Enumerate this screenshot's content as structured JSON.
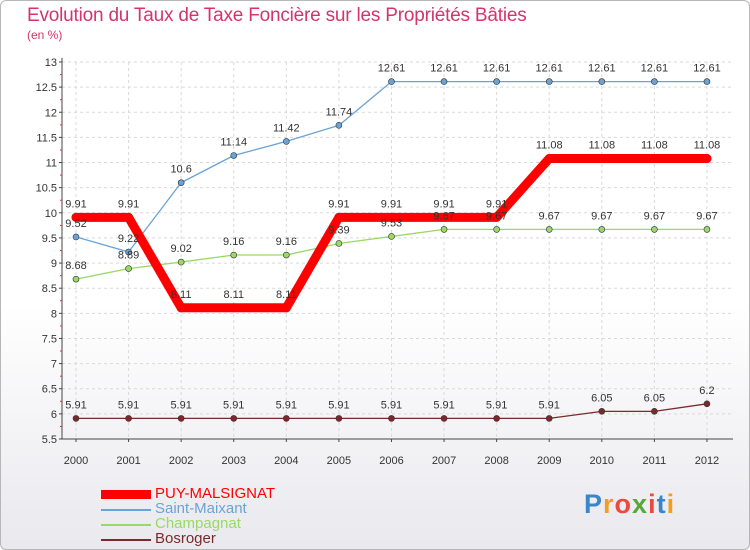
{
  "title": "Evolution du Taux de Taxe Foncière sur les Propriétés Bâties",
  "unit": "(en %)",
  "logo": [
    "P",
    "r",
    "o",
    "x",
    "i",
    "t",
    "i"
  ],
  "logo_colors": [
    "#3a86c8",
    "#f0a01e",
    "#e94b3c",
    "#57a838",
    "#e94b3c",
    "#3a86c8",
    "#f0a01e"
  ],
  "chart_data": {
    "type": "line",
    "x": [
      "2000",
      "2001",
      "2002",
      "2003",
      "2004",
      "2005",
      "2006",
      "2007",
      "2008",
      "2009",
      "2010",
      "2011",
      "2012"
    ],
    "ylim": [
      5.5,
      13
    ],
    "yticks": [
      "5.5",
      "6",
      "6.5",
      "7",
      "7.5",
      "8",
      "8.5",
      "9",
      "9.5",
      "10",
      "10.5",
      "11",
      "11.5",
      "12",
      "12.5",
      "13"
    ],
    "series": [
      {
        "name": "PUY-MALSIGNAT",
        "color": "#ff0000",
        "width": 9,
        "values": [
          9.91,
          9.91,
          8.11,
          8.11,
          8.11,
          9.91,
          9.91,
          9.91,
          9.91,
          11.08,
          11.08,
          11.08,
          11.08
        ],
        "labels": [
          "9.91",
          "9.91",
          "8.11",
          "8.11",
          "8.11",
          "9.91",
          "9.91",
          "9.91",
          "9.91",
          "11.08",
          "11.08",
          "11.08",
          "11.08"
        ]
      },
      {
        "name": "Saint-Maixant",
        "color": "#6aa3d5",
        "width": 1.3,
        "values": [
          9.52,
          9.22,
          10.6,
          11.14,
          11.42,
          11.74,
          12.61,
          12.61,
          12.61,
          12.61,
          12.61,
          12.61,
          12.61
        ],
        "labels": [
          "9.52",
          "9.22",
          "10.6",
          "11.14",
          "11.42",
          "11.74",
          "12.61",
          "12.61",
          "12.61",
          "12.61",
          "12.61",
          "12.61",
          "12.61"
        ]
      },
      {
        "name": "Champagnat",
        "color": "#99d966",
        "width": 1.3,
        "values": [
          8.68,
          8.89,
          9.02,
          9.16,
          9.16,
          9.39,
          9.53,
          9.67,
          9.67,
          9.67,
          9.67,
          9.67,
          9.67
        ],
        "labels": [
          "8.68",
          "8.89",
          "9.02",
          "9.16",
          "9.16",
          "9.39",
          "9.53",
          "9.67",
          "9.67",
          "9.67",
          "9.67",
          "9.67",
          "9.67"
        ]
      },
      {
        "name": "Bosroger",
        "color": "#7a2a2a",
        "width": 1.3,
        "values": [
          5.91,
          5.91,
          5.91,
          5.91,
          5.91,
          5.91,
          5.91,
          5.91,
          5.91,
          5.91,
          6.05,
          6.05,
          6.2
        ],
        "labels": [
          "5.91",
          "5.91",
          "5.91",
          "5.91",
          "5.91",
          "5.91",
          "5.91",
          "5.91",
          "5.91",
          "5.91",
          "6.05",
          "6.05",
          "6.2"
        ]
      }
    ]
  }
}
